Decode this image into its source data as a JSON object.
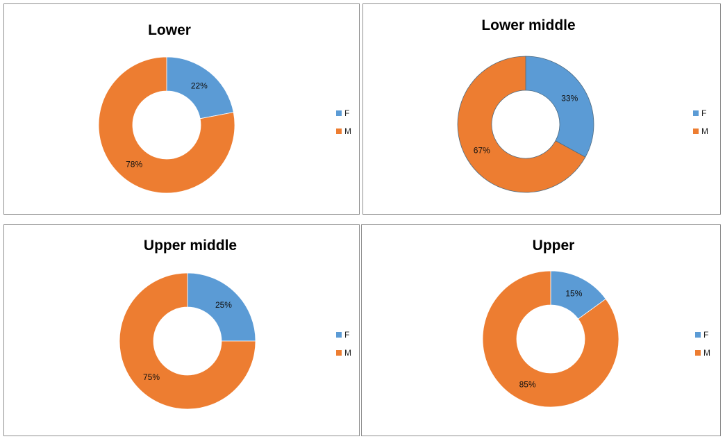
{
  "colors": {
    "F": "#5b9bd5",
    "M": "#ed7d31"
  },
  "chart_data": [
    {
      "type": "pie",
      "subtype": "donut",
      "title": "Lower",
      "categories": [
        "F",
        "M"
      ],
      "values": [
        22,
        78
      ],
      "data_labels": [
        "22%",
        "78%"
      ],
      "legend": [
        "F",
        "M"
      ],
      "legend_position": "right"
    },
    {
      "type": "pie",
      "subtype": "donut",
      "title": "Lower middle",
      "categories": [
        "F",
        "M"
      ],
      "values": [
        33,
        67
      ],
      "data_labels": [
        "33%",
        "67%"
      ],
      "legend": [
        "F",
        "M"
      ],
      "legend_position": "right"
    },
    {
      "type": "pie",
      "subtype": "donut",
      "title": "Upper middle",
      "categories": [
        "F",
        "M"
      ],
      "values": [
        25,
        75
      ],
      "data_labels": [
        "25%",
        "75%"
      ],
      "legend": [
        "F",
        "M"
      ],
      "legend_position": "right"
    },
    {
      "type": "pie",
      "subtype": "donut",
      "title": "Upper",
      "categories": [
        "F",
        "M"
      ],
      "values": [
        15,
        85
      ],
      "data_labels": [
        "15%",
        "85%"
      ],
      "legend": [
        "F",
        "M"
      ],
      "legend_position": "right"
    }
  ]
}
